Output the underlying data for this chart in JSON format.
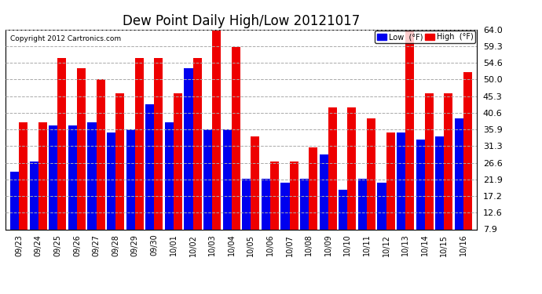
{
  "title": "Dew Point Daily High/Low 20121017",
  "copyright": "Copyright 2012 Cartronics.com",
  "categories": [
    "09/23",
    "09/24",
    "09/25",
    "09/26",
    "09/27",
    "09/28",
    "09/29",
    "09/30",
    "10/01",
    "10/02",
    "10/03",
    "10/04",
    "10/05",
    "10/06",
    "10/07",
    "10/08",
    "10/09",
    "10/10",
    "10/11",
    "10/12",
    "10/13",
    "10/14",
    "10/15",
    "10/16"
  ],
  "low_values": [
    24,
    27,
    37,
    37,
    38,
    35,
    36,
    43,
    38,
    53,
    36,
    36,
    22,
    22,
    21,
    22,
    29,
    19,
    22,
    21,
    35,
    33,
    34,
    39
  ],
  "high_values": [
    38,
    38,
    56,
    53,
    50,
    46,
    56,
    56,
    46,
    56,
    64,
    59,
    34,
    27,
    27,
    31,
    42,
    42,
    39,
    35,
    64,
    46,
    46,
    52
  ],
  "low_color": "#0000ee",
  "high_color": "#ee0000",
  "ylim": [
    7.9,
    64.0
  ],
  "yticks": [
    7.9,
    12.6,
    17.2,
    21.9,
    26.6,
    31.3,
    35.9,
    40.6,
    45.3,
    50.0,
    54.6,
    59.3,
    64.0
  ],
  "background_color": "#ffffff",
  "plot_bg_color": "#ffffff",
  "grid_color": "#aaaaaa",
  "title_fontsize": 12,
  "legend_low_label": "Low  (°F)",
  "legend_high_label": "High  (°F)"
}
